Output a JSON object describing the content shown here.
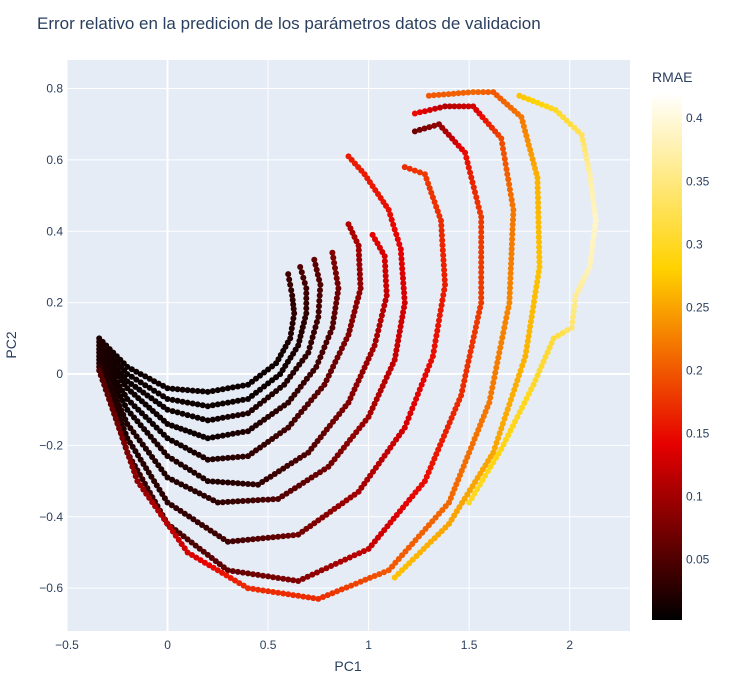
{
  "chart_data": {
    "type": "scatter",
    "title": "Error relativo en la predicion de los parámetros datos de validacion",
    "xlabel": "PC1",
    "ylabel": "PC2",
    "xlim": [
      -0.5,
      2.3
    ],
    "ylim": [
      -0.72,
      0.88
    ],
    "x_ticks": [
      -0.5,
      0,
      0.5,
      1,
      1.5,
      2
    ],
    "x_tick_labels": [
      "−0.5",
      "0",
      "0.5",
      "1",
      "1.5",
      "2"
    ],
    "y_ticks": [
      -0.6,
      -0.4,
      -0.2,
      0,
      0.2,
      0.4,
      0.6,
      0.8
    ],
    "y_tick_labels": [
      "−0.6",
      "−0.4",
      "−0.2",
      "0",
      "0.2",
      "0.4",
      "0.6",
      "0.8"
    ],
    "grid": true,
    "colorbar": {
      "title": "RMAE",
      "range": [
        0.002,
        0.42
      ],
      "ticks": [
        0.05,
        0.1,
        0.15,
        0.2,
        0.25,
        0.3,
        0.35,
        0.4
      ],
      "tick_labels": [
        "0.05",
        "0.1",
        "0.15",
        "0.2",
        "0.25",
        "0.3",
        "0.35",
        "0.4"
      ],
      "colorscale": [
        "#000000",
        "#e60000",
        "#ffd200",
        "#ffffff"
      ]
    },
    "series": [
      {
        "points": [
          [
            -0.34,
            0.1,
            0.02
          ],
          [
            -0.2,
            0.02,
            0.01
          ],
          [
            0.0,
            -0.04,
            0.01
          ],
          [
            0.2,
            -0.05,
            0.01
          ],
          [
            0.4,
            -0.03,
            0.01
          ],
          [
            0.54,
            0.03,
            0.01
          ],
          [
            0.61,
            0.1,
            0.02
          ],
          [
            0.63,
            0.17,
            0.03
          ],
          [
            0.62,
            0.22,
            0.03
          ],
          [
            0.6,
            0.28,
            0.04
          ]
        ]
      },
      {
        "points": [
          [
            -0.34,
            0.09,
            0.02
          ],
          [
            -0.2,
            0.0,
            0.01
          ],
          [
            0.0,
            -0.07,
            0.01
          ],
          [
            0.2,
            -0.09,
            0.01
          ],
          [
            0.4,
            -0.07,
            0.01
          ],
          [
            0.56,
            0.0,
            0.01
          ],
          [
            0.65,
            0.08,
            0.02
          ],
          [
            0.69,
            0.17,
            0.03
          ],
          [
            0.69,
            0.24,
            0.04
          ],
          [
            0.66,
            0.3,
            0.05
          ]
        ]
      },
      {
        "points": [
          [
            -0.34,
            0.08,
            0.02
          ],
          [
            -0.2,
            -0.02,
            0.01
          ],
          [
            0.0,
            -0.1,
            0.01
          ],
          [
            0.2,
            -0.13,
            0.01
          ],
          [
            0.4,
            -0.11,
            0.02
          ],
          [
            0.58,
            -0.03,
            0.02
          ],
          [
            0.7,
            0.06,
            0.03
          ],
          [
            0.75,
            0.16,
            0.04
          ],
          [
            0.76,
            0.25,
            0.05
          ],
          [
            0.73,
            0.32,
            0.06
          ]
        ]
      },
      {
        "points": [
          [
            -0.34,
            0.07,
            0.02
          ],
          [
            -0.2,
            -0.04,
            0.01
          ],
          [
            0.0,
            -0.14,
            0.01
          ],
          [
            0.2,
            -0.18,
            0.01
          ],
          [
            0.4,
            -0.16,
            0.02
          ],
          [
            0.6,
            -0.08,
            0.03
          ],
          [
            0.74,
            0.02,
            0.04
          ],
          [
            0.82,
            0.13,
            0.05
          ],
          [
            0.85,
            0.24,
            0.07
          ],
          [
            0.82,
            0.34,
            0.08
          ]
        ]
      },
      {
        "points": [
          [
            -0.34,
            0.06,
            0.02
          ],
          [
            -0.2,
            -0.07,
            0.01
          ],
          [
            0.0,
            -0.18,
            0.01
          ],
          [
            0.2,
            -0.24,
            0.02
          ],
          [
            0.4,
            -0.23,
            0.03
          ],
          [
            0.6,
            -0.15,
            0.04
          ],
          [
            0.78,
            -0.03,
            0.06
          ],
          [
            0.9,
            0.11,
            0.08
          ],
          [
            0.96,
            0.24,
            0.09
          ],
          [
            0.95,
            0.36,
            0.1
          ],
          [
            0.9,
            0.42,
            0.11
          ]
        ]
      },
      {
        "points": [
          [
            -0.34,
            0.05,
            0.02
          ],
          [
            -0.2,
            -0.1,
            0.01
          ],
          [
            0.0,
            -0.23,
            0.02
          ],
          [
            0.2,
            -0.3,
            0.02
          ],
          [
            0.45,
            -0.31,
            0.03
          ],
          [
            0.7,
            -0.22,
            0.05
          ],
          [
            0.9,
            -0.08,
            0.08
          ],
          [
            1.03,
            0.08,
            0.1
          ],
          [
            1.09,
            0.22,
            0.12
          ],
          [
            1.08,
            0.33,
            0.13
          ],
          [
            1.02,
            0.39,
            0.14
          ]
        ]
      },
      {
        "points": [
          [
            -0.34,
            0.04,
            0.02
          ],
          [
            -0.2,
            -0.14,
            0.02
          ],
          [
            0.0,
            -0.29,
            0.02
          ],
          [
            0.25,
            -0.36,
            0.03
          ],
          [
            0.55,
            -0.35,
            0.05
          ],
          [
            0.8,
            -0.26,
            0.07
          ],
          [
            1.0,
            -0.12,
            0.1
          ],
          [
            1.13,
            0.04,
            0.12
          ],
          [
            1.18,
            0.2,
            0.13
          ],
          [
            1.16,
            0.35,
            0.14
          ],
          [
            1.1,
            0.46,
            0.15
          ],
          [
            0.98,
            0.56,
            0.16
          ],
          [
            0.9,
            0.61,
            0.16
          ]
        ]
      },
      {
        "points": [
          [
            -0.34,
            0.03,
            0.02
          ],
          [
            -0.2,
            -0.18,
            0.02
          ],
          [
            0.0,
            -0.36,
            0.03
          ],
          [
            0.3,
            -0.47,
            0.04
          ],
          [
            0.65,
            -0.45,
            0.07
          ],
          [
            0.95,
            -0.33,
            0.1
          ],
          [
            1.18,
            -0.15,
            0.13
          ],
          [
            1.32,
            0.05,
            0.15
          ],
          [
            1.38,
            0.25,
            0.16
          ],
          [
            1.36,
            0.43,
            0.17
          ],
          [
            1.28,
            0.56,
            0.18
          ],
          [
            1.18,
            0.58,
            0.17
          ]
        ]
      },
      {
        "points": [
          [
            -0.34,
            0.02,
            0.03
          ],
          [
            -0.2,
            -0.22,
            0.03
          ],
          [
            0.0,
            -0.42,
            0.04
          ],
          [
            0.3,
            -0.55,
            0.06
          ],
          [
            0.65,
            -0.58,
            0.08
          ],
          [
            1.0,
            -0.49,
            0.12
          ],
          [
            1.28,
            -0.3,
            0.15
          ],
          [
            1.46,
            -0.06,
            0.17
          ],
          [
            1.56,
            0.2,
            0.18
          ],
          [
            1.56,
            0.44,
            0.18
          ],
          [
            1.48,
            0.62,
            0.15
          ],
          [
            1.35,
            0.7,
            0.09
          ],
          [
            1.23,
            0.68,
            0.07
          ]
        ]
      },
      {
        "points": [
          [
            -0.34,
            0.01,
            0.05
          ],
          [
            -0.15,
            -0.3,
            0.09
          ],
          [
            0.1,
            -0.5,
            0.13
          ],
          [
            0.4,
            -0.6,
            0.17
          ],
          [
            0.75,
            -0.63,
            0.17
          ],
          [
            1.1,
            -0.55,
            0.2
          ],
          [
            1.4,
            -0.36,
            0.21
          ],
          [
            1.6,
            -0.08,
            0.22
          ],
          [
            1.7,
            0.2,
            0.23
          ],
          [
            1.72,
            0.46,
            0.22
          ],
          [
            1.66,
            0.66,
            0.19
          ],
          [
            1.52,
            0.75,
            0.13
          ],
          [
            1.38,
            0.75,
            0.11
          ],
          [
            1.23,
            0.73,
            0.15
          ]
        ]
      },
      {
        "points": [
          [
            1.13,
            -0.57,
            0.27
          ],
          [
            1.4,
            -0.42,
            0.25
          ],
          [
            1.62,
            -0.22,
            0.25
          ],
          [
            1.78,
            0.05,
            0.26
          ],
          [
            1.85,
            0.3,
            0.27
          ],
          [
            1.84,
            0.55,
            0.26
          ],
          [
            1.76,
            0.72,
            0.22
          ],
          [
            1.62,
            0.79,
            0.2
          ],
          [
            1.52,
            0.79,
            0.21
          ],
          [
            1.3,
            0.78,
            0.2
          ]
        ]
      },
      {
        "points": [
          [
            1.5,
            -0.36,
            0.3
          ],
          [
            1.66,
            -0.21,
            0.29
          ],
          [
            1.82,
            -0.03,
            0.3
          ],
          [
            1.92,
            0.1,
            0.31
          ],
          [
            2.01,
            0.13,
            0.34
          ],
          [
            2.03,
            0.22,
            0.36
          ],
          [
            2.1,
            0.3,
            0.38
          ],
          [
            2.13,
            0.43,
            0.39
          ],
          [
            2.1,
            0.56,
            0.37
          ],
          [
            2.06,
            0.67,
            0.33
          ],
          [
            1.93,
            0.74,
            0.3
          ],
          [
            1.75,
            0.78,
            0.27
          ]
        ]
      }
    ]
  }
}
